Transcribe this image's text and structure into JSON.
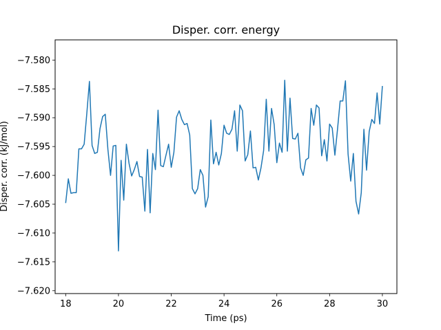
{
  "chart_data": {
    "type": "line",
    "title": "Disper. corr. energy",
    "xlabel": "Time (ps)",
    "ylabel": "Disper. corr. (kJ/mol)",
    "xlim": [
      17.6,
      30.55
    ],
    "ylim": [
      -7.6205,
      -7.5765
    ],
    "xticks": [
      18,
      20,
      22,
      24,
      26,
      28,
      30
    ],
    "xtick_labels": [
      "18",
      "20",
      "22",
      "24",
      "26",
      "28",
      "30"
    ],
    "yticks": [
      -7.62,
      -7.615,
      -7.61,
      -7.605,
      -7.6,
      -7.595,
      -7.59,
      -7.585,
      -7.58
    ],
    "ytick_labels": [
      "−7.620",
      "−7.615",
      "−7.610",
      "−7.605",
      "−7.600",
      "−7.595",
      "−7.590",
      "−7.585",
      "−7.580"
    ],
    "grid": false,
    "series": [
      {
        "color": "#1f77b4",
        "x": [
          18.0,
          18.1,
          18.2,
          18.3,
          18.4,
          18.5,
          18.6,
          18.7,
          18.8,
          18.9,
          19.0,
          19.1,
          19.2,
          19.3,
          19.4,
          19.5,
          19.6,
          19.7,
          19.8,
          19.9,
          20.0,
          20.1,
          20.2,
          20.3,
          20.4,
          20.5,
          20.6,
          20.7,
          20.8,
          20.9,
          21.0,
          21.1,
          21.2,
          21.3,
          21.4,
          21.5,
          21.6,
          21.7,
          21.8,
          21.9,
          22.0,
          22.1,
          22.2,
          22.3,
          22.4,
          22.5,
          22.6,
          22.7,
          22.8,
          22.9,
          23.0,
          23.1,
          23.2,
          23.3,
          23.4,
          23.5,
          23.6,
          23.7,
          23.8,
          23.9,
          24.0,
          24.1,
          24.2,
          24.3,
          24.4,
          24.5,
          24.6,
          24.7,
          24.8,
          24.9,
          25.0,
          25.1,
          25.2,
          25.3,
          25.4,
          25.5,
          25.6,
          25.7,
          25.8,
          25.9,
          26.0,
          26.1,
          26.2,
          26.3,
          26.4,
          26.5,
          26.6,
          26.7,
          26.8,
          26.9,
          27.0,
          27.1,
          27.2,
          27.3,
          27.4,
          27.5,
          27.6,
          27.7,
          27.8,
          27.9,
          28.0,
          28.1,
          28.2,
          28.3,
          28.4,
          28.5,
          28.6,
          28.7,
          28.8,
          28.9,
          29.0,
          29.1,
          29.2,
          29.3,
          29.4,
          29.5,
          29.6,
          29.7,
          29.8,
          29.9,
          30.0
        ],
        "y": [
          -7.6048,
          -7.6006,
          -7.6031,
          -7.603,
          -7.603,
          -7.5954,
          -7.5954,
          -7.5946,
          -7.5893,
          -7.5837,
          -7.5948,
          -7.5962,
          -7.596,
          -7.5919,
          -7.5898,
          -7.5894,
          -7.5955,
          -7.6,
          -7.5949,
          -7.5948,
          -7.6131,
          -7.5974,
          -7.6043,
          -7.5946,
          -7.5979,
          -7.6001,
          -7.599,
          -7.5976,
          -7.6002,
          -7.6003,
          -7.6062,
          -7.5955,
          -7.6065,
          -7.5962,
          -7.599,
          -7.5887,
          -7.5983,
          -7.5985,
          -7.5965,
          -7.5946,
          -7.5986,
          -7.596,
          -7.5899,
          -7.5888,
          -7.5903,
          -7.5912,
          -7.591,
          -7.593,
          -7.6023,
          -7.6032,
          -7.6023,
          -7.599,
          -7.6,
          -7.6055,
          -7.6037,
          -7.5904,
          -7.598,
          -7.596,
          -7.5982,
          -7.5962,
          -7.5913,
          -7.5927,
          -7.5929,
          -7.592,
          -7.5888,
          -7.5958,
          -7.5878,
          -7.5888,
          -7.5975,
          -7.5964,
          -7.5923,
          -7.5987,
          -7.5986,
          -7.6008,
          -7.5987,
          -7.5957,
          -7.5868,
          -7.5958,
          -7.5884,
          -7.5912,
          -7.5978,
          -7.5944,
          -7.596,
          -7.5835,
          -7.5958,
          -7.5866,
          -7.5936,
          -7.5937,
          -7.5927,
          -7.5987,
          -7.6,
          -7.5973,
          -7.597,
          -7.5884,
          -7.5913,
          -7.5878,
          -7.5883,
          -7.5966,
          -7.5938,
          -7.5975,
          -7.5911,
          -7.5918,
          -7.5965,
          -7.592,
          -7.5871,
          -7.5871,
          -7.5836,
          -7.5963,
          -7.601,
          -7.5962,
          -7.6045,
          -7.6067,
          -7.603,
          -7.592,
          -7.5991,
          -7.5924,
          -7.5903,
          -7.591,
          -7.5857,
          -7.5911,
          -7.5845
        ]
      }
    ]
  }
}
